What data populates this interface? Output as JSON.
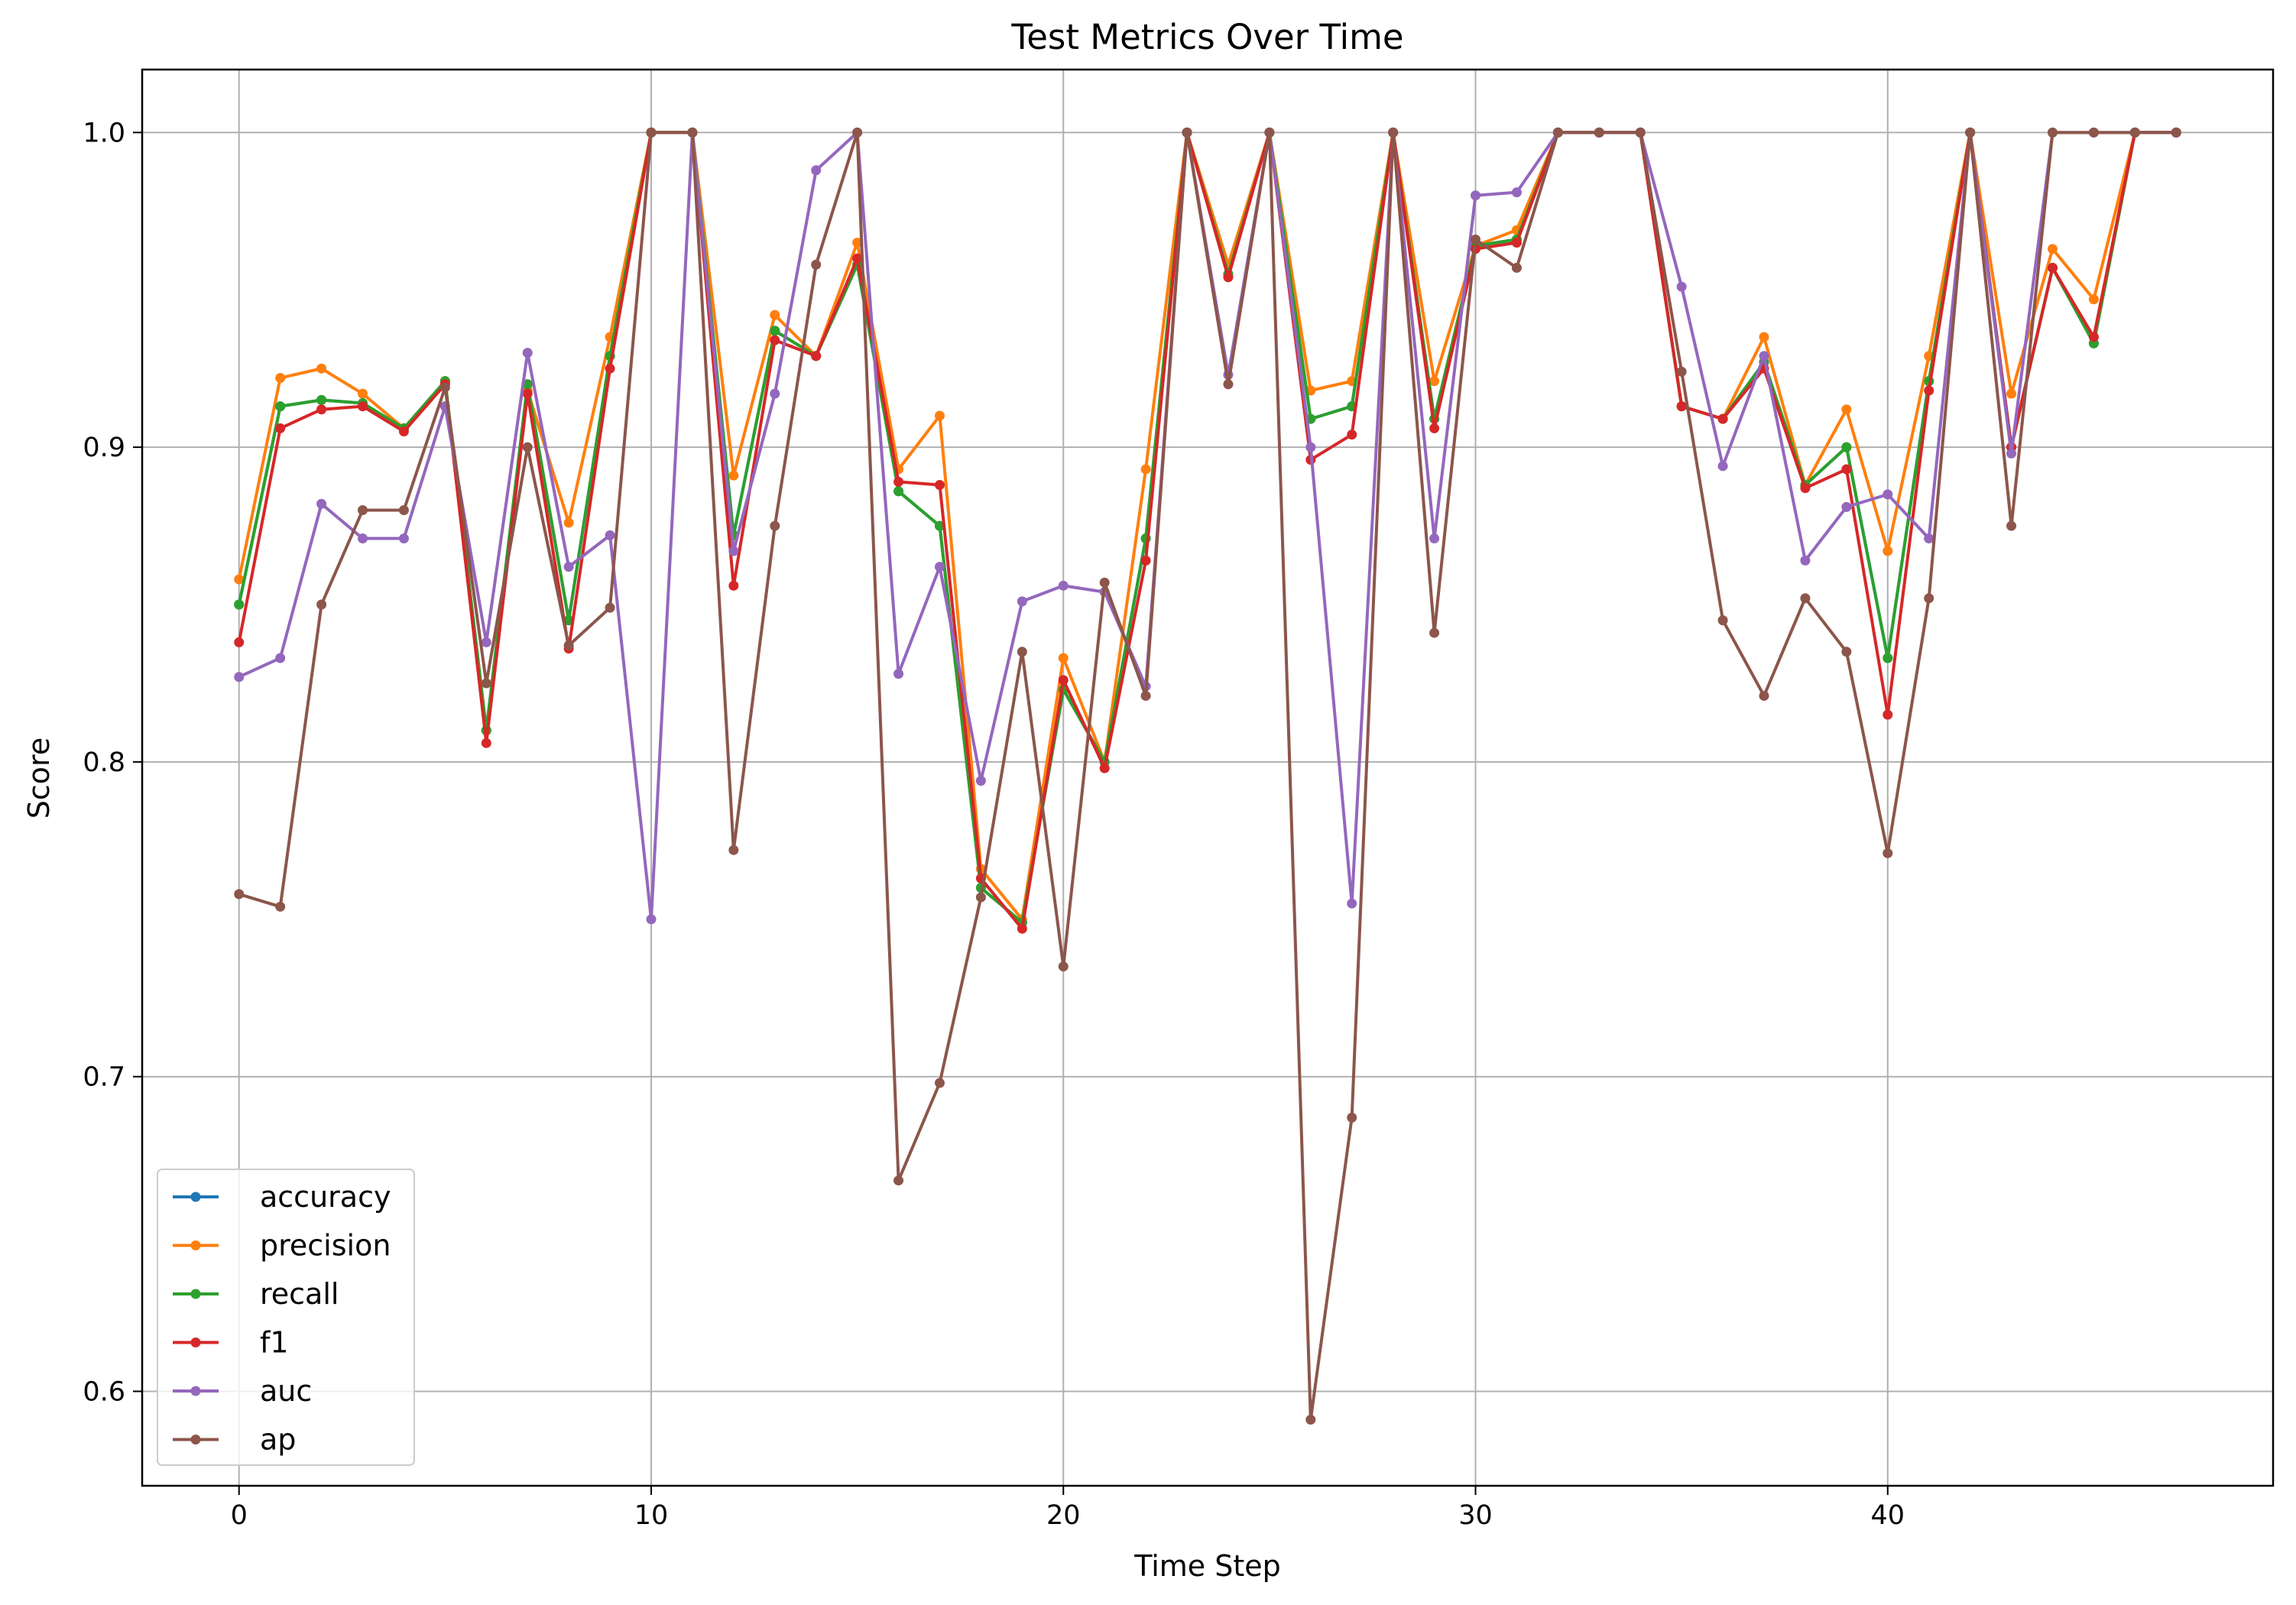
{
  "chart_data": {
    "type": "line",
    "title": "Test Metrics Over Time",
    "xlabel": "Time Step",
    "ylabel": "Score",
    "xlim": [
      -2.35,
      49.35
    ],
    "ylim": [
      0.57,
      1.02
    ],
    "x_ticks": [
      0,
      10,
      20,
      30,
      40
    ],
    "y_ticks": [
      0.6,
      0.7,
      0.8,
      0.9,
      1.0
    ],
    "y_tick_labels": [
      "0.6",
      "0.7",
      "0.8",
      "0.9",
      "1.0"
    ],
    "grid": true,
    "legend_position": "lower-left",
    "x": [
      0,
      1,
      2,
      3,
      4,
      5,
      6,
      7,
      8,
      9,
      10,
      11,
      12,
      13,
      14,
      15,
      16,
      17,
      18,
      19,
      20,
      21,
      22,
      23,
      24,
      25,
      26,
      27,
      28,
      29,
      30,
      31,
      32,
      33,
      34,
      35,
      36,
      37,
      38,
      39,
      40,
      41,
      42,
      43,
      44,
      45,
      46,
      47
    ],
    "series": [
      {
        "name": "accuracy",
        "color": "#1f77b4",
        "values": [
          0.85,
          0.913,
          0.915,
          0.914,
          0.906,
          0.921,
          0.81,
          0.92,
          0.845,
          0.929,
          1.0,
          1.0,
          0.872,
          0.937,
          0.929,
          0.958,
          0.886,
          0.875,
          0.76,
          0.749,
          0.823,
          0.8,
          0.871,
          1.0,
          0.955,
          1.0,
          0.909,
          0.913,
          1.0,
          0.909,
          0.964,
          0.966,
          1.0,
          1.0,
          1.0,
          0.913,
          0.909,
          0.927,
          0.888,
          0.9,
          0.833,
          0.921,
          1.0,
          0.9,
          0.957,
          0.933,
          1.0,
          1.0
        ]
      },
      {
        "name": "precision",
        "color": "#ff7f0e",
        "values": [
          0.858,
          0.922,
          0.925,
          0.917,
          0.906,
          0.921,
          0.81,
          0.918,
          0.876,
          0.935,
          1.0,
          1.0,
          0.891,
          0.942,
          0.929,
          0.965,
          0.893,
          0.91,
          0.766,
          0.75,
          0.833,
          0.8,
          0.893,
          1.0,
          0.958,
          1.0,
          0.918,
          0.921,
          1.0,
          0.921,
          0.964,
          0.969,
          1.0,
          1.0,
          1.0,
          0.913,
          0.909,
          0.935,
          0.888,
          0.912,
          0.867,
          0.929,
          1.0,
          0.917,
          0.963,
          0.947,
          1.0,
          1.0
        ]
      },
      {
        "name": "recall",
        "color": "#2ca02c",
        "values": [
          0.85,
          0.913,
          0.915,
          0.914,
          0.906,
          0.921,
          0.81,
          0.92,
          0.845,
          0.929,
          1.0,
          1.0,
          0.872,
          0.937,
          0.929,
          0.958,
          0.886,
          0.875,
          0.76,
          0.749,
          0.823,
          0.8,
          0.871,
          1.0,
          0.955,
          1.0,
          0.909,
          0.913,
          1.0,
          0.909,
          0.964,
          0.966,
          1.0,
          1.0,
          1.0,
          0.913,
          0.909,
          0.927,
          0.888,
          0.9,
          0.833,
          0.921,
          1.0,
          0.9,
          0.957,
          0.933,
          1.0,
          1.0
        ]
      },
      {
        "name": "f1",
        "color": "#d62728",
        "values": [
          0.838,
          0.906,
          0.912,
          0.913,
          0.905,
          0.92,
          0.806,
          0.917,
          0.836,
          0.925,
          1.0,
          1.0,
          0.856,
          0.934,
          0.929,
          0.96,
          0.889,
          0.888,
          0.763,
          0.747,
          0.826,
          0.798,
          0.864,
          1.0,
          0.954,
          1.0,
          0.896,
          0.904,
          1.0,
          0.906,
          0.963,
          0.965,
          1.0,
          1.0,
          1.0,
          0.913,
          0.909,
          0.925,
          0.887,
          0.893,
          0.815,
          0.918,
          1.0,
          0.9,
          0.957,
          0.935,
          1.0,
          1.0
        ]
      },
      {
        "name": "auc",
        "color": "#9467bd",
        "values": [
          0.827,
          0.833,
          0.882,
          0.871,
          0.871,
          0.913,
          0.838,
          0.93,
          0.862,
          0.872,
          0.75,
          1.0,
          0.867,
          0.917,
          0.988,
          1.0,
          0.828,
          0.862,
          0.794,
          0.851,
          0.856,
          0.854,
          0.824,
          1.0,
          0.923,
          1.0,
          0.9,
          0.755,
          1.0,
          0.871,
          0.98,
          0.981,
          1.0,
          1.0,
          1.0,
          0.951,
          0.894,
          0.929,
          0.864,
          0.881,
          0.885,
          0.871,
          1.0,
          0.898,
          1.0,
          1.0,
          1.0,
          1.0
        ]
      },
      {
        "name": "ap",
        "color": "#8c564b",
        "values": [
          0.758,
          0.754,
          0.85,
          0.88,
          0.88,
          0.919,
          0.825,
          0.9,
          0.837,
          0.849,
          1.0,
          1.0,
          0.772,
          0.875,
          0.958,
          1.0,
          0.667,
          0.698,
          0.757,
          0.835,
          0.735,
          0.857,
          0.821,
          1.0,
          0.92,
          1.0,
          0.591,
          0.687,
          1.0,
          0.841,
          0.966,
          0.957,
          1.0,
          1.0,
          1.0,
          0.924,
          0.845,
          0.821,
          0.852,
          0.835,
          0.771,
          0.852,
          1.0,
          0.875,
          1.0,
          1.0,
          1.0,
          1.0
        ]
      }
    ]
  }
}
